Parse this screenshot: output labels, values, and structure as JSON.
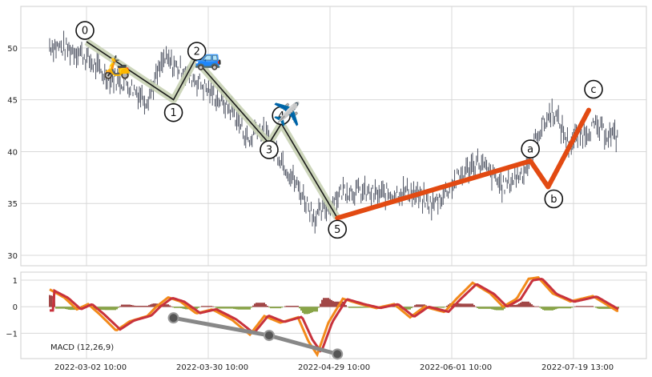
{
  "chart_data": [
    {
      "type": "line",
      "panel": "price",
      "x_tick_labels": [
        "2022-03-02 10:00",
        "2022-03-30 10:00",
        "2022-04-29 10:00",
        "2022-06-01 10:00",
        "2022-07-19 13:00"
      ],
      "y_ticks": [
        30,
        35,
        40,
        45,
        50
      ],
      "ylim": [
        29,
        54
      ],
      "grid": true,
      "impulse_wave": {
        "labels": [
          "0",
          "1",
          "2",
          "3",
          "4",
          "5"
        ],
        "points": [
          {
            "x": "2022-03-02",
            "y": 50.6
          },
          {
            "x": "2022-03-22",
            "y": 45.0
          },
          {
            "x": "2022-03-27",
            "y": 48.9
          },
          {
            "x": "2022-04-14",
            "y": 40.8
          },
          {
            "x": "2022-04-17",
            "y": 42.7
          },
          {
            "x": "2022-05-01",
            "y": 33.6
          }
        ],
        "color": "#1a1a1a",
        "halo_color": "#c8d2b4"
      },
      "correction_wave": {
        "labels": [
          "a",
          "b",
          "c"
        ],
        "points": [
          {
            "x": "2022-05-01",
            "y": 33.6
          },
          {
            "x": "2022-07-02",
            "y": 39.1
          },
          {
            "x": "2022-07-09",
            "y": 36.6
          },
          {
            "x": "2022-07-25",
            "y": 44.0
          }
        ],
        "color": "#e24a12"
      },
      "icons": [
        "scooter-icon",
        "car-icon",
        "airplane-icon"
      ],
      "icon_glyphs": {
        "scooter": "🛵",
        "car": "🚙",
        "airplane": "✈️"
      },
      "price_color": "#3a4050"
    },
    {
      "type": "line",
      "panel": "macd",
      "label": "MACD (12,26,9)",
      "y_ticks": [
        -1,
        0,
        1
      ],
      "ylim": [
        -1.95,
        1.3
      ],
      "series_colors": {
        "macd": "#f28a1a",
        "signal": "#c8323c",
        "hist_pos": "#8b1a1a",
        "hist_neg": "#6b8e1a"
      },
      "divergence_line": {
        "points": [
          {
            "x": "2022-03-22",
            "y": -0.42
          },
          {
            "x": "2022-04-14",
            "y": -1.08
          },
          {
            "x": "2022-05-01",
            "y": -1.78
          }
        ],
        "color": "#888888"
      }
    }
  ]
}
